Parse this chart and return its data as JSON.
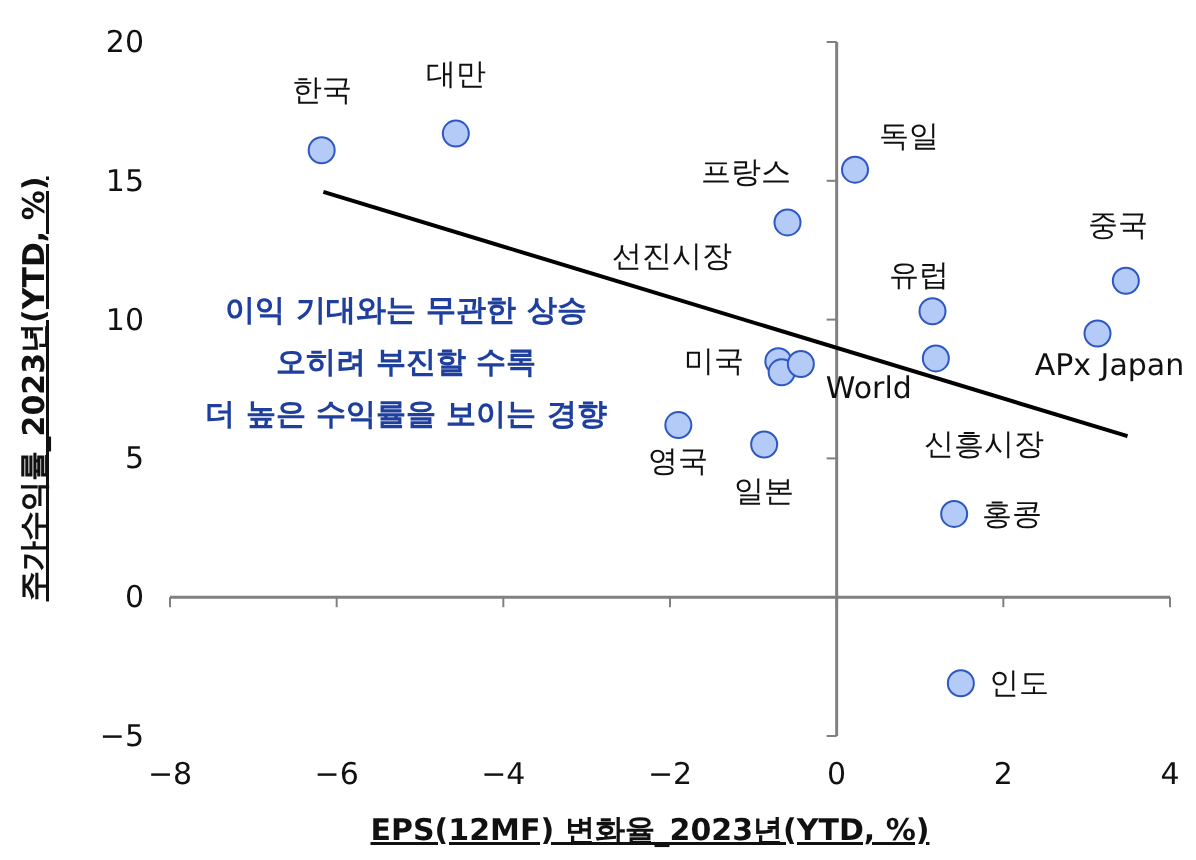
{
  "chart_data": {
    "type": "scatter",
    "xlabel": "EPS(12MF) 변화율_2023년(YTD, %)",
    "ylabel": "주가수익률_2023년(YTD, %)",
    "xlim": [
      -8,
      4
    ],
    "xticks": [
      -8,
      -6,
      -4,
      -2,
      0,
      2,
      4
    ],
    "ylim": [
      -5,
      20
    ],
    "yticks": [
      -5,
      0,
      5,
      10,
      15,
      20
    ],
    "series": [
      {
        "color": "#b4cbf7",
        "marker": "circle",
        "x": [
          -6.18,
          -4.57,
          0.22,
          -0.59,
          3.47,
          1.15,
          3.13,
          1.19,
          -0.7,
          -0.66,
          -0.43,
          -1.9,
          -0.87,
          1.41,
          1.49
        ],
        "values": [
          16.1,
          16.7,
          15.4,
          13.5,
          11.4,
          10.3,
          9.5,
          8.6,
          8.5,
          8.1,
          8.4,
          6.2,
          5.5,
          3.0,
          -3.1
        ]
      },
      {
        "type": "line",
        "color": "#000000",
        "x": [
          -6.16,
          3.49
        ],
        "values": [
          14.6,
          5.8
        ]
      }
    ],
    "annotations": [
      {
        "text": "한국",
        "x": -6.18,
        "y": 16.1
      },
      {
        "text": "대만",
        "x": -4.57,
        "y": 16.7
      },
      {
        "text": "독일",
        "x": 0.22,
        "y": 15.4
      },
      {
        "text": "프랑스",
        "x": -0.59,
        "y": 13.5
      },
      {
        "text": "중국",
        "x": 3.47,
        "y": 11.4
      },
      {
        "text": "유럽",
        "x": 1.15,
        "y": 10.3
      },
      {
        "text": "APx Japan",
        "x": 3.13,
        "y": 9.5
      },
      {
        "text": "신흥시장",
        "x": 1.19,
        "y": 8.6
      },
      {
        "text": "미국",
        "x": -0.7,
        "y": 8.5
      },
      "선진시장",
      {
        "text": "World",
        "x": -0.43,
        "y": 8.4
      },
      {
        "text": "영국",
        "x": -1.9,
        "y": 6.2
      },
      {
        "text": "일본",
        "x": -0.87,
        "y": 5.5
      },
      {
        "text": "홍콩",
        "x": 1.41,
        "y": 3.0
      },
      {
        "text": "인도",
        "x": 1.49,
        "y": -3.1
      },
      "이익 기대와는 무관한 상승\n오히려 부진할 수록\n더 높은 수익률을 보이는 경향"
    ]
  }
}
